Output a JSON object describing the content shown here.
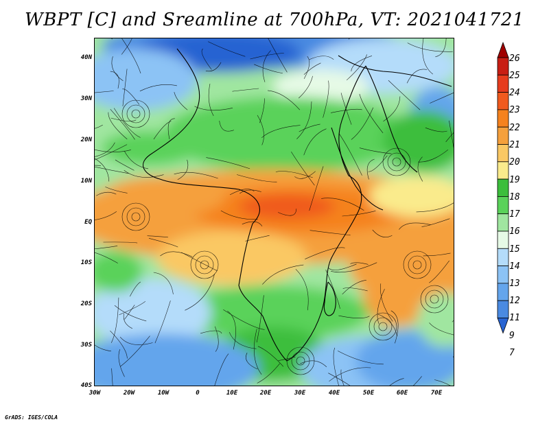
{
  "title": "WBPT [C] and Sreamline at 700hPa, VT: 2021041721",
  "credit": "GrADS: IGES/COLA",
  "map": {
    "lat_labels": [
      "40N",
      "30N",
      "20N",
      "10N",
      "EQ",
      "10S",
      "20S",
      "30S",
      "40S"
    ],
    "lon_labels": [
      "30W",
      "20W",
      "10W",
      "0",
      "10E",
      "20E",
      "30E",
      "40E",
      "50E",
      "60E",
      "70E"
    ]
  },
  "colorbar": {
    "labels": [
      "26",
      "25",
      "24",
      "23",
      "22",
      "21",
      "20",
      "19",
      "18",
      "17",
      "16",
      "15",
      "14",
      "13",
      "12",
      "11",
      "9",
      "7"
    ],
    "colors": [
      "#a00000",
      "#c81e14",
      "#e63c1e",
      "#f05a1e",
      "#f5821e",
      "#f5a03c",
      "#fac864",
      "#faeb8c",
      "#3cbe3c",
      "#5ad25a",
      "#a0e6a0",
      "#e6fae6",
      "#b4dcfa",
      "#8cc3f5",
      "#64a5ec",
      "#4a8ae1",
      "#2864d2"
    ]
  }
}
